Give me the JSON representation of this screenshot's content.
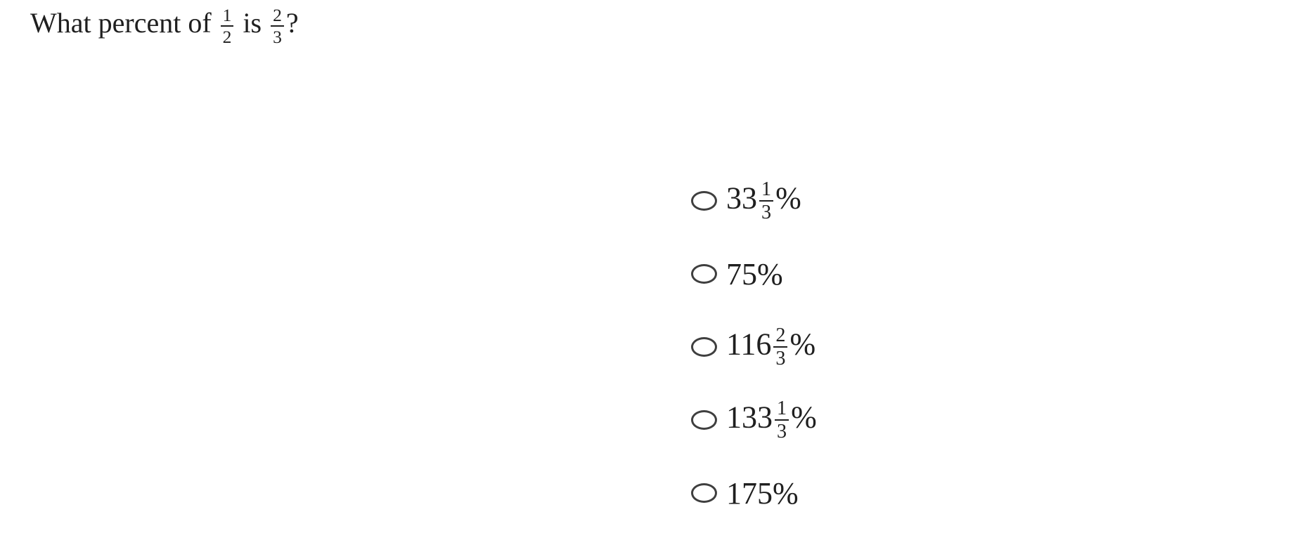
{
  "page": {
    "background": "#ffffff"
  },
  "question": {
    "prefix": "What percent of",
    "fraction1": {
      "num": "1",
      "den": "2"
    },
    "connector": "is",
    "fraction2": {
      "num": "2",
      "den": "3"
    },
    "suffix": "?"
  },
  "options": [
    {
      "whole": "33",
      "frac": {
        "num": "1",
        "den": "3"
      },
      "unit": "%",
      "selected": false
    },
    {
      "whole": "75",
      "unit": "%",
      "selected": false
    },
    {
      "whole": "116",
      "frac": {
        "num": "2",
        "den": "3"
      },
      "unit": "%",
      "selected": false
    },
    {
      "whole": "133",
      "frac": {
        "num": "1",
        "den": "3"
      },
      "unit": "%",
      "selected": false
    },
    {
      "whole": "175",
      "unit": "%",
      "selected": false
    }
  ],
  "colors": {
    "text": "#1f1f1f",
    "radio_border": "#3f3f3f",
    "fraction_bar": "#1f1f1f",
    "background": "#ffffff"
  }
}
